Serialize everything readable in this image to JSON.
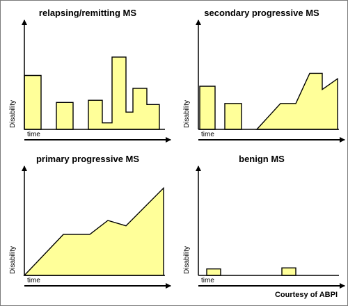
{
  "colors": {
    "fill": "#ffff99",
    "stroke": "#000000",
    "axis": "#000000"
  },
  "y_label": "Disability",
  "x_label": "time",
  "credit": "Courtesy of ABPI",
  "chart_data": [
    {
      "type": "area",
      "id": "rr",
      "title": "relapsing/remitting MS",
      "segments": [
        [
          [
            0,
            0
          ],
          [
            0,
            0.5
          ],
          [
            0.12,
            0.5
          ],
          [
            0.12,
            0
          ]
        ],
        [
          [
            0.23,
            0
          ],
          [
            0.23,
            0.25
          ],
          [
            0.35,
            0.25
          ],
          [
            0.35,
            0
          ]
        ],
        [
          [
            0.46,
            0
          ],
          [
            0.46,
            0.27
          ],
          [
            0.56,
            0.27
          ],
          [
            0.56,
            0.06
          ],
          [
            0.63,
            0.06
          ],
          [
            0.63,
            0.67
          ],
          [
            0.73,
            0.67
          ],
          [
            0.73,
            0.16
          ],
          [
            0.78,
            0.16
          ],
          [
            0.78,
            0.38
          ],
          [
            0.88,
            0.38
          ],
          [
            0.88,
            0.23
          ],
          [
            0.97,
            0.23
          ],
          [
            0.97,
            0
          ]
        ]
      ]
    },
    {
      "type": "area",
      "id": "sp",
      "title": "secondary progressive MS",
      "segments": [
        [
          [
            0.01,
            0
          ],
          [
            0.01,
            0.4
          ],
          [
            0.12,
            0.4
          ],
          [
            0.12,
            0
          ]
        ],
        [
          [
            0.19,
            0
          ],
          [
            0.19,
            0.24
          ],
          [
            0.31,
            0.24
          ],
          [
            0.31,
            0
          ]
        ],
        [
          [
            0.42,
            0
          ],
          [
            0.59,
            0.24
          ],
          [
            0.7,
            0.24
          ],
          [
            0.8,
            0.52
          ],
          [
            0.89,
            0.52
          ],
          [
            0.89,
            0.37
          ],
          [
            1.0,
            0.47
          ],
          [
            1.0,
            0
          ]
        ]
      ]
    },
    {
      "type": "area",
      "id": "pp",
      "title": "primary progressive MS",
      "segments": [
        [
          [
            0,
            0
          ],
          [
            0.28,
            0.38
          ],
          [
            0.47,
            0.38
          ],
          [
            0.6,
            0.51
          ],
          [
            0.73,
            0.46
          ],
          [
            1.0,
            0.81
          ],
          [
            1.0,
            0
          ]
        ]
      ]
    },
    {
      "type": "area",
      "id": "benign",
      "title": "benign MS",
      "segments": [
        [
          [
            0.06,
            0
          ],
          [
            0.06,
            0.06
          ],
          [
            0.16,
            0.06
          ],
          [
            0.16,
            0
          ]
        ],
        [
          [
            0.6,
            0
          ],
          [
            0.6,
            0.07
          ],
          [
            0.7,
            0.07
          ],
          [
            0.7,
            0
          ]
        ]
      ]
    }
  ]
}
